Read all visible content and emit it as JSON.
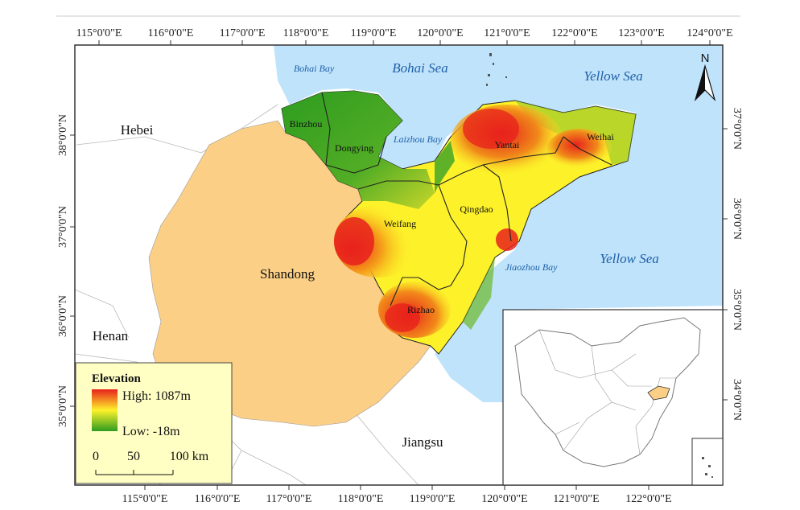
{
  "top_longitudes": [
    "115°0'0\"E",
    "116°0'0\"E",
    "117°0'0\"E",
    "118°0'0\"E",
    "119°0'0\"E",
    "120°0'0\"E",
    "121°0'0\"E",
    "122°0'0\"E",
    "123°0'0\"E",
    "124°0'0\"E"
  ],
  "bottom_longitudes": [
    "115°0'0\"E",
    "116°0'0\"E",
    "117°0'0\"E",
    "118°0'0\"E",
    "119°0'0\"E",
    "120°0'0\"E",
    "121°0'0\"E",
    "122°0'0\"E"
  ],
  "left_latitudes": [
    "38°0'0\"N",
    "37°0'0\"N",
    "36°0'0\"N",
    "35°0'0\"N"
  ],
  "right_latitudes": [
    "37°0'0\"N",
    "36°0'0\"N",
    "35°0'0\"N",
    "34°0'0\"N"
  ],
  "regions": {
    "hebei": "Hebei",
    "henan": "Henan",
    "shandong": "Shandong",
    "jiangsu": "Jiangsu"
  },
  "cities": {
    "binzhou": "Binzhou",
    "dongying": "Dongying",
    "weifang": "Weifang",
    "qingdao": "Qingdao",
    "yantai": "Yantai",
    "weihai": "Weihai",
    "rizhao": "Rizhao"
  },
  "waters": {
    "bohai_bay": "Bohai Bay",
    "bohai_sea": "Bohai Sea",
    "yellow_sea_top": "Yellow Sea",
    "laizhou_bay": "Laizhou Bay",
    "yellow_sea_right": "Yellow Sea",
    "jiaozhou_bay": "Jiaozhou Bay"
  },
  "north_arrow": "N",
  "legend": {
    "title": "Elevation",
    "high": "High: 1087m",
    "low": "Low: -18m",
    "scale_0": "0",
    "scale_50": "50",
    "scale_100": "100 km"
  },
  "colors": {
    "sea": "#bfe3fb",
    "shandong_fill": "#fbcf86",
    "elev_high": "#e8221c",
    "elev_mid": "#fdf22a",
    "elev_low": "#2e9c20",
    "legend_bg": "#ffffc4"
  }
}
